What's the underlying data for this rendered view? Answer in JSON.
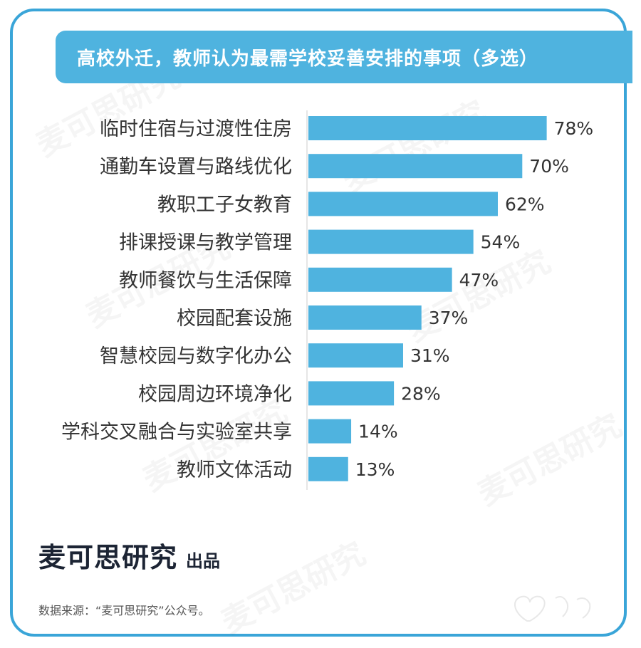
{
  "title": "高校外迁，教师认为最需学校妥善安排的事项（多选）",
  "chart_data": {
    "type": "bar",
    "orientation": "horizontal",
    "categories": [
      "临时住宿与过渡性住房",
      "通勤车设置与路线优化",
      "教职工子女教育",
      "排课授课与教学管理",
      "教师餐饮与生活保障",
      "校园配套设施",
      "智慧校园与数字化办公",
      "校园周边环境净化",
      "学科交叉融合与实验室共享",
      "教师文体活动"
    ],
    "values": [
      78,
      70,
      62,
      54,
      47,
      37,
      31,
      28,
      14,
      13
    ],
    "value_labels": [
      "78%",
      "70%",
      "62%",
      "54%",
      "47%",
      "37%",
      "31%",
      "28%",
      "14%",
      "13%"
    ],
    "unit": "%",
    "bar_color": "#4fb3df",
    "xlim": [
      0,
      100
    ],
    "grid": false,
    "legend": "none"
  },
  "brand": {
    "name": "麦可思研究",
    "suffix": "出品"
  },
  "watermark_text": "麦可思研究",
  "source_note": "数据来源：“麦可思研究”公众号。",
  "colors": {
    "accent": "#4fb3df",
    "frame": "#3aa5d8",
    "brand_text": "#1c2434"
  }
}
